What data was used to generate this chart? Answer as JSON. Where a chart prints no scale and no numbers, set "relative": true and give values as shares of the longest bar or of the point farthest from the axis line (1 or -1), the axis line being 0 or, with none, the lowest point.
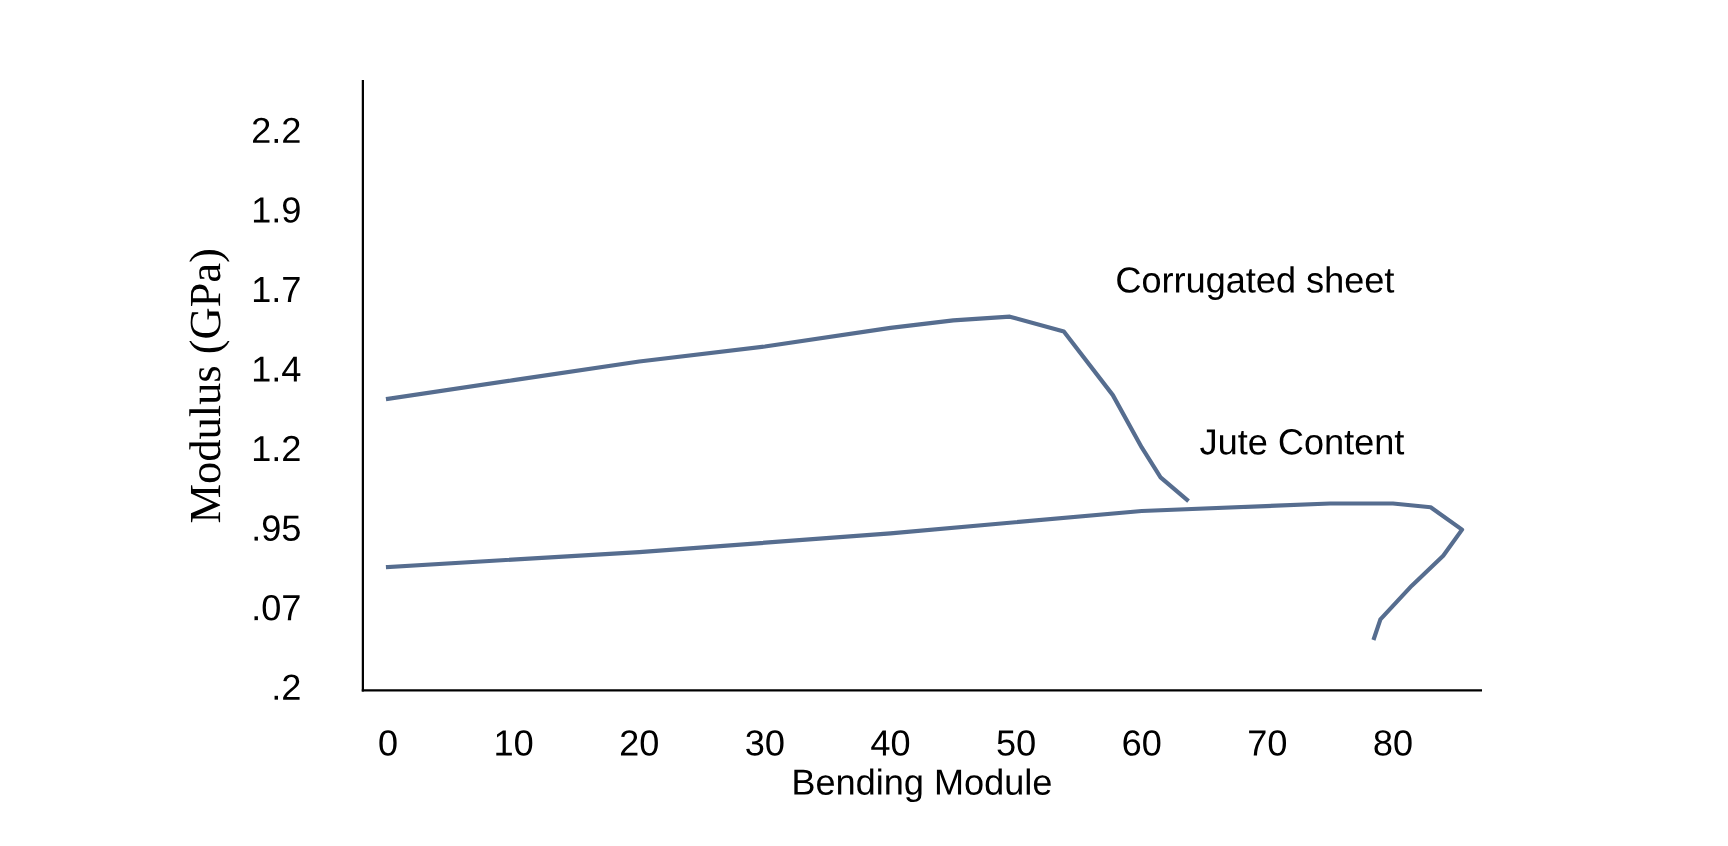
{
  "chart_data": {
    "type": "line",
    "xlabel": "Bending Module",
    "ylabel": "Modulus (GPa)",
    "relative": true,
    "xlim": [
      -2,
      87
    ],
    "xticks": [
      0,
      10,
      20,
      30,
      40,
      50,
      60,
      70,
      80
    ],
    "annotations": [
      "2.2",
      "1.9",
      "1.7",
      "1.4",
      "1.2",
      ".95",
      ".07",
      ".2"
    ],
    "grid": false,
    "legend": false,
    "marker": "none",
    "line_style": "solid",
    "series": [
      {
        "name": "Corrugated sheet",
        "color": "#566d8f",
        "x": [
          0,
          10,
          20,
          30,
          40,
          45,
          49.5,
          53.8,
          57.7,
          60,
          61.5,
          63.6
        ],
        "values": [
          0.78,
          0.83,
          0.88,
          0.92,
          0.97,
          0.99,
          1.0,
          0.96,
          0.79,
          0.65,
          0.57,
          0.51
        ]
      },
      {
        "name": "Jute Content",
        "color": "#566d8f",
        "x": [
          0,
          20,
          40,
          60,
          75,
          80,
          83,
          85.5,
          84,
          81.5,
          79,
          78.5
        ],
        "values": [
          0.33,
          0.37,
          0.42,
          0.48,
          0.5,
          0.5,
          0.49,
          0.43,
          0.36,
          0.28,
          0.19,
          0.14
        ]
      }
    ]
  }
}
